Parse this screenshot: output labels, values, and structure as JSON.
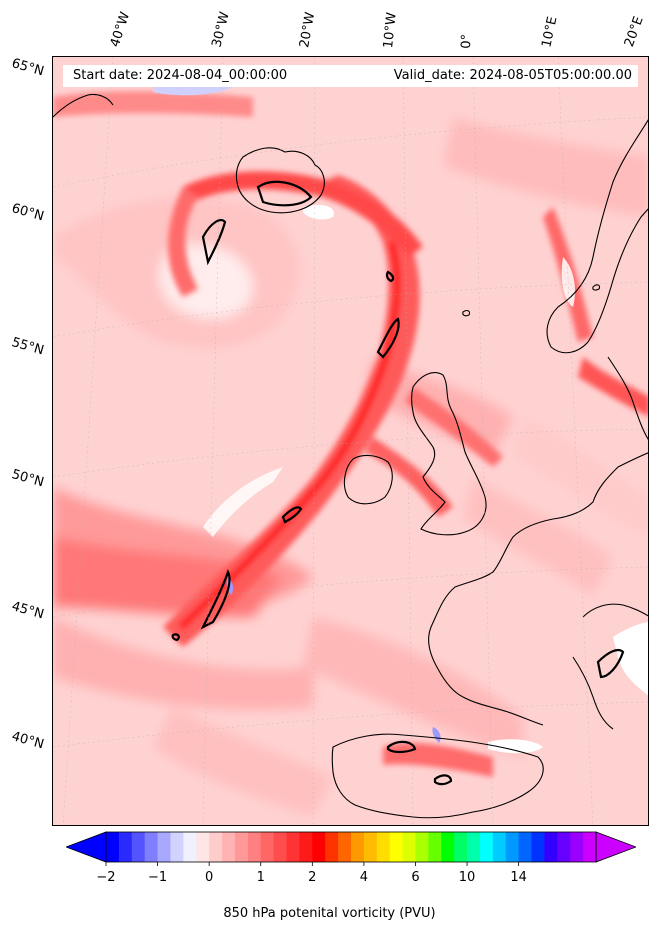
{
  "header": {
    "start_date": "Start date: 2024-08-04_00:00:00",
    "valid_date": "Valid_date: 2024-08-05T05:00:00.00"
  },
  "axes": {
    "latitude_labels": [
      "65°N",
      "60°N",
      "55°N",
      "50°N",
      "45°N",
      "40°N"
    ],
    "longitude_labels": [
      "40°W",
      "30°W",
      "20°W",
      "10°W",
      "0°",
      "10°E",
      "20°E"
    ]
  },
  "colorbar": {
    "title": "850 hPa potenital vorticity (PVU)",
    "tick_labels": [
      "−2",
      "−1",
      "0",
      "1",
      "2",
      "4",
      "6",
      "10",
      "14"
    ],
    "colors": [
      "#0000ff",
      "#2a2aff",
      "#5454ff",
      "#7e7eff",
      "#a8a8ff",
      "#d2d2ff",
      "#f0f0ff",
      "#ffe6e6",
      "#ffcccc",
      "#ffb3b3",
      "#ff9999",
      "#ff8080",
      "#ff6666",
      "#ff4d4d",
      "#ff3333",
      "#ff1a1a",
      "#ff0000",
      "#ff3300",
      "#ff6600",
      "#ff9900",
      "#ffbb00",
      "#ffdd00",
      "#ffff00",
      "#ddff00",
      "#aaff00",
      "#66ff00",
      "#00ff00",
      "#00ff66",
      "#00ffaa",
      "#00ffff",
      "#00ccff",
      "#0099ff",
      "#0066ff",
      "#0033ff",
      "#3300ff",
      "#6600ff",
      "#9900ff",
      "#cc00ff"
    ],
    "under_color": "#0000ff",
    "over_color": "#cc00ff"
  }
}
